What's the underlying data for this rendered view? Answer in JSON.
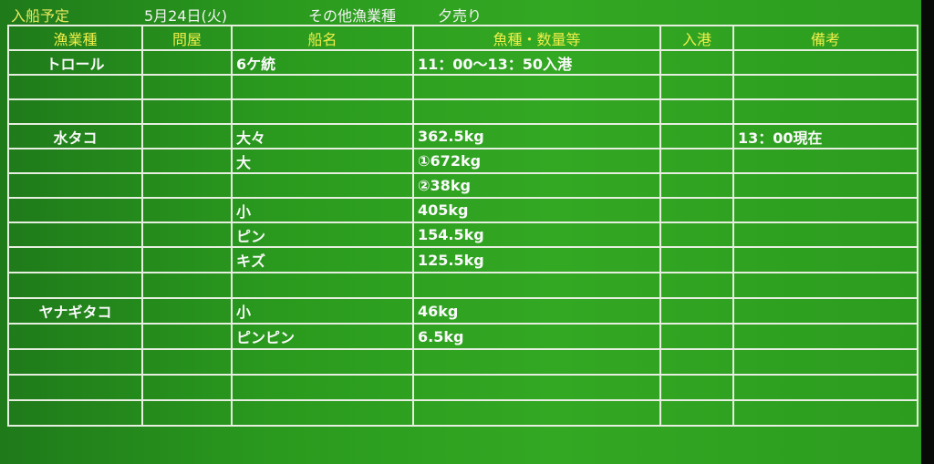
{
  "title": {
    "label": "入船予定",
    "date": "5月24日(火)",
    "category": "その他漁業種",
    "session": "夕売り"
  },
  "colors": {
    "board": "#2a9a1e",
    "header_text": "#f0ee4a",
    "grid": "#e6eee0",
    "cell_text": "#fafafa"
  },
  "columns": [
    "漁業種",
    "問屋",
    "船名",
    "魚種・数量等",
    "入港",
    "備考"
  ],
  "rows": [
    [
      "トロール",
      "",
      "6ケ統",
      "11：00～13：50入港",
      "",
      ""
    ],
    [
      "",
      "",
      "",
      "",
      "",
      ""
    ],
    [
      "",
      "",
      "",
      "",
      "",
      ""
    ],
    [
      "水タコ",
      "",
      "大々",
      "362.5kg",
      "",
      "13：00現在"
    ],
    [
      "",
      "",
      "大",
      "①672kg",
      "",
      ""
    ],
    [
      "",
      "",
      "",
      "②38kg",
      "",
      ""
    ],
    [
      "",
      "",
      "小",
      "405kg",
      "",
      ""
    ],
    [
      "",
      "",
      "ピン",
      "154.5kg",
      "",
      ""
    ],
    [
      "",
      "",
      "キズ",
      "125.5kg",
      "",
      ""
    ],
    [
      "",
      "",
      "",
      "",
      "",
      ""
    ],
    [
      "ヤナギタコ",
      "",
      "小",
      "46kg",
      "",
      ""
    ],
    [
      "",
      "",
      "ピンピン",
      "6.5kg",
      "",
      ""
    ],
    [
      "",
      "",
      "",
      "",
      "",
      ""
    ],
    [
      "",
      "",
      "",
      "",
      "",
      ""
    ],
    [
      "",
      "",
      "",
      "",
      "",
      ""
    ]
  ]
}
